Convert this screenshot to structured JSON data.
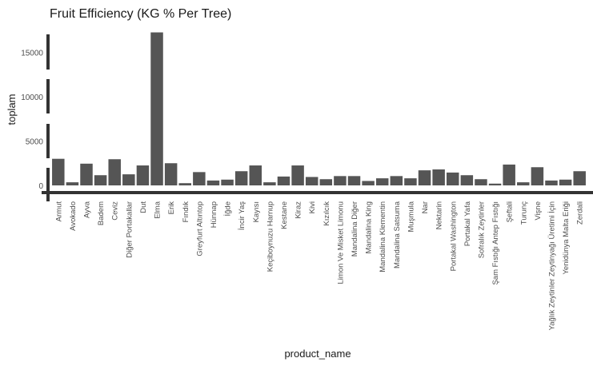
{
  "chart_data": {
    "type": "bar",
    "title": "Fruit Efficiency (KG % Per Tree)",
    "xlabel": "product_name",
    "ylabel": "toplam",
    "ylim": [
      0,
      17500
    ],
    "yticks": [
      0,
      5000,
      10000,
      15000
    ],
    "grid": false,
    "categories": [
      "Armut",
      "Avokado",
      "Ayva",
      "Badem",
      "Ceviz",
      "Diğer Portakallar",
      "Dut",
      "Elma",
      "Erik",
      "Fındık",
      "Greyfurt Altıntop",
      "Hünnap",
      "İğde",
      "İncir Yaş",
      "Kayısı",
      "Keçiboynuzu Harnup",
      "Kestane",
      "Kiraz",
      "Kivi",
      "Kızılcık",
      "Limon Ve Misket Limonu",
      "Mandalina Diğer",
      "Mandalina King",
      "Mandalina Klementin",
      "Mandalina Satsuma",
      "Muşmula",
      "Nar",
      "Nektarin",
      "Portakal Washington",
      "Portakal Yafa",
      "Sofralık Zeytinler",
      "Şam Fıstığı Antep Fıstığı",
      "Şeftali",
      "Turunç",
      "Vişne",
      "Yağlık Zeytinler Zeytinyağı Üretimi İçin",
      "Yenidünya Malta Eriği",
      "Zerdali"
    ],
    "values": [
      3000,
      350,
      2450,
      1150,
      2950,
      1250,
      2250,
      17250,
      2500,
      250,
      1500,
      550,
      650,
      1600,
      2250,
      350,
      1000,
      2250,
      950,
      700,
      1050,
      1050,
      500,
      800,
      1050,
      800,
      1700,
      1800,
      1450,
      1150,
      700,
      200,
      2350,
      350,
      2050,
      550,
      650,
      1600
    ]
  }
}
